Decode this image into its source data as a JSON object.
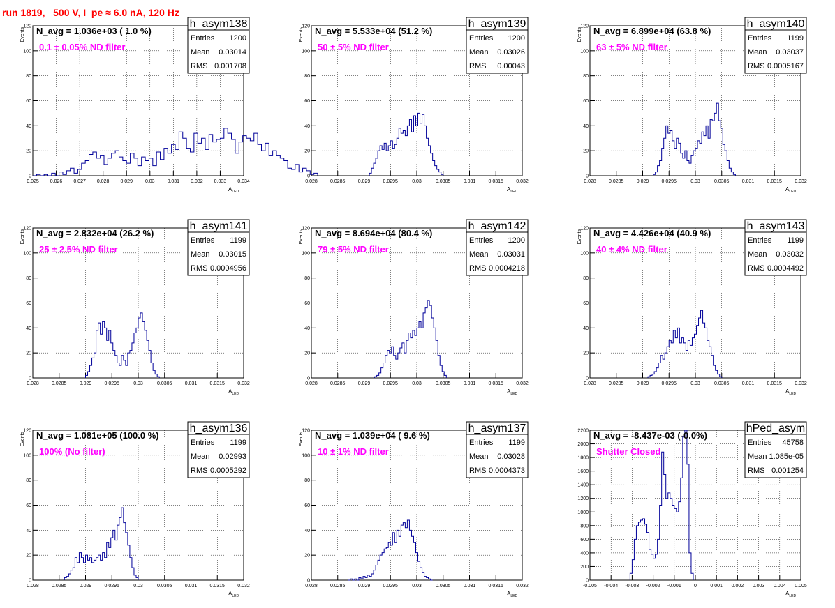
{
  "page_title": "run 1819,   500 V, I_pe ≈ 6.0 nA, 120 Hz",
  "colors": {
    "histogram_line": "#000099",
    "annotation_magenta": "#ff00ff",
    "title_red": "#ff0000",
    "grid": "#000000"
  },
  "stat_box_labels": {
    "entries": "Entries",
    "mean": "Mean",
    "rms": "RMS"
  },
  "chart_data": [
    {
      "type": "bar",
      "hist_name": "h_asym138",
      "header": "N_avg = 1.036e+03 ( 1.0 %)",
      "filter": "0.1 ± 0.05% ND filter",
      "stats": {
        "entries": "1200",
        "mean": "0.03014",
        "rms": "0.001708"
      },
      "xlabel": "A",
      "xlabel_sub": "LED",
      "ylabel": "Events",
      "xlim": [
        0.025,
        0.034
      ],
      "ylim": [
        0,
        120
      ],
      "grid": true,
      "xticks": [
        "0.025",
        "0.026",
        "0.027",
        "0.028",
        "0.029",
        "0.03",
        "0.031",
        "0.032",
        "0.033",
        "0.034"
      ],
      "yticks": [
        "0",
        "20",
        "40",
        "60",
        "80",
        "100",
        "120"
      ],
      "bin_start": 0.025,
      "bin_width": 0.00016,
      "values": [
        0,
        1,
        0,
        1,
        0,
        2,
        0,
        3,
        1,
        4,
        6,
        2,
        5,
        10,
        12,
        17,
        19,
        14,
        16,
        9,
        14,
        18,
        20,
        15,
        12,
        10,
        18,
        14,
        8,
        15,
        12,
        14,
        8,
        19,
        13,
        22,
        18,
        25,
        21,
        35,
        30,
        22,
        19,
        34,
        26,
        30,
        21,
        33,
        27,
        29,
        30,
        38,
        34,
        29,
        18,
        27,
        32,
        30,
        28,
        34,
        25,
        20,
        26,
        16,
        20,
        16,
        14,
        12,
        6,
        5,
        9,
        3,
        6,
        4,
        1,
        2,
        0
      ]
    },
    {
      "type": "bar",
      "hist_name": "h_asym139",
      "header": "N_avg = 5.533e+04 (51.2 %)",
      "filter": "50 ± 5% ND filter",
      "stats": {
        "entries": "1200",
        "mean": "0.03026",
        "rms": "0.00043"
      },
      "xlabel": "A",
      "xlabel_sub": "LED",
      "ylabel": "Events",
      "xlim": [
        0.028,
        0.032
      ],
      "ylim": [
        0,
        120
      ],
      "grid": true,
      "xticks": [
        "0.028",
        "0.0285",
        "0.029",
        "0.0295",
        "0.03",
        "0.0305",
        "0.031",
        "0.0315",
        "0.032"
      ],
      "yticks": [
        "0",
        "20",
        "40",
        "60",
        "80",
        "100",
        "120"
      ],
      "bin_start": 0.0291,
      "bin_width": 4e-05,
      "values": [
        2,
        6,
        10,
        14,
        20,
        24,
        21,
        26,
        20,
        24,
        28,
        22,
        25,
        30,
        38,
        34,
        36,
        32,
        40,
        45,
        35,
        48,
        40,
        50,
        42,
        49,
        40,
        30,
        24,
        18,
        12,
        8,
        5,
        3,
        1
      ]
    },
    {
      "type": "bar",
      "hist_name": "h_asym140",
      "header": "N_avg = 6.899e+04 (63.8 %)",
      "filter": "63 ± 5% ND filter",
      "stats": {
        "entries": "1199",
        "mean": "0.03037",
        "rms": "0.0005167"
      },
      "xlabel": "A",
      "xlabel_sub": "LED",
      "ylabel": "Events",
      "xlim": [
        0.028,
        0.032
      ],
      "ylim": [
        0,
        120
      ],
      "grid": true,
      "xticks": [
        "0.028",
        "0.0285",
        "0.029",
        "0.0295",
        "0.03",
        "0.0305",
        "0.031",
        "0.0315",
        "0.032"
      ],
      "yticks": [
        "0",
        "20",
        "40",
        "60",
        "80",
        "100",
        "120"
      ],
      "bin_start": 0.0292,
      "bin_width": 4e-05,
      "values": [
        1,
        3,
        8,
        12,
        22,
        30,
        40,
        34,
        36,
        28,
        22,
        30,
        26,
        18,
        14,
        20,
        12,
        10,
        16,
        20,
        22,
        28,
        26,
        35,
        32,
        40,
        30,
        45,
        44,
        50,
        58,
        44,
        38,
        25,
        20,
        12,
        6,
        3,
        1
      ]
    },
    {
      "type": "bar",
      "hist_name": "h_asym141",
      "header": "N_avg = 2.832e+04 (26.2 %)",
      "filter": "25 ± 2.5% ND filter",
      "stats": {
        "entries": "1199",
        "mean": "0.03015",
        "rms": "0.0004956"
      },
      "xlabel": "A",
      "xlabel_sub": "LED",
      "ylabel": "Events",
      "xlim": [
        0.028,
        0.032
      ],
      "ylim": [
        0,
        120
      ],
      "grid": true,
      "xticks": [
        "0.028",
        "0.0285",
        "0.029",
        "0.0295",
        "0.03",
        "0.0305",
        "0.031",
        "0.0315",
        "0.032"
      ],
      "yticks": [
        "0",
        "20",
        "40",
        "60",
        "80",
        "100",
        "120"
      ],
      "bin_start": 0.029,
      "bin_width": 4e-05,
      "values": [
        2,
        5,
        10,
        16,
        20,
        38,
        44,
        35,
        45,
        40,
        30,
        38,
        28,
        22,
        18,
        12,
        10,
        18,
        14,
        10,
        20,
        22,
        28,
        36,
        40,
        48,
        52,
        45,
        38,
        30,
        22,
        12,
        6,
        3,
        1
      ]
    },
    {
      "type": "bar",
      "hist_name": "h_asym142",
      "header": "N_avg = 8.694e+04 (80.4 %)",
      "filter": "79 ± 5% ND filter",
      "stats": {
        "entries": "1200",
        "mean": "0.03031",
        "rms": "0.0004218"
      },
      "xlabel": "A",
      "xlabel_sub": "LED",
      "ylabel": "Events",
      "xlim": [
        0.028,
        0.032
      ],
      "ylim": [
        0,
        120
      ],
      "grid": true,
      "xticks": [
        "0.028",
        "0.0285",
        "0.029",
        "0.0295",
        "0.03",
        "0.0305",
        "0.031",
        "0.0315",
        "0.032"
      ],
      "yticks": [
        "0",
        "20",
        "40",
        "60",
        "80",
        "100",
        "120"
      ],
      "bin_start": 0.0292,
      "bin_width": 4e-05,
      "values": [
        1,
        2,
        4,
        8,
        12,
        18,
        22,
        20,
        25,
        18,
        15,
        20,
        24,
        28,
        20,
        30,
        36,
        32,
        38,
        34,
        40,
        45,
        40,
        52,
        56,
        62,
        58,
        48,
        40,
        30,
        18,
        10,
        5,
        2
      ]
    },
    {
      "type": "bar",
      "hist_name": "h_asym143",
      "header": "N_avg = 4.426e+04 (40.9 %)",
      "filter": "40 ± 4% ND filter",
      "stats": {
        "entries": "1199",
        "mean": "0.03032",
        "rms": "0.0004492"
      },
      "xlabel": "A",
      "xlabel_sub": "LED",
      "ylabel": "Events",
      "xlim": [
        0.028,
        0.032
      ],
      "ylim": [
        0,
        120
      ],
      "grid": true,
      "xticks": [
        "0.028",
        "0.0285",
        "0.029",
        "0.0295",
        "0.03",
        "0.0305",
        "0.031",
        "0.0315",
        "0.032"
      ],
      "yticks": [
        "0",
        "20",
        "40",
        "60",
        "80",
        "100",
        "120"
      ],
      "bin_start": 0.0291,
      "bin_width": 4e-05,
      "values": [
        1,
        2,
        3,
        5,
        8,
        12,
        18,
        15,
        20,
        25,
        30,
        28,
        38,
        32,
        40,
        28,
        32,
        28,
        22,
        30,
        26,
        32,
        35,
        42,
        48,
        54,
        44,
        40,
        30,
        25,
        18,
        10,
        6,
        3,
        1
      ]
    },
    {
      "type": "bar",
      "hist_name": "h_asym136",
      "header": "N_avg = 1.081e+05 (100.0 %)",
      "filter": "100% (No filter)",
      "stats": {
        "entries": "1199",
        "mean": "0.02993",
        "rms": "0.0005292"
      },
      "xlabel": "A",
      "xlabel_sub": "LED",
      "ylabel": "Events",
      "xlim": [
        0.028,
        0.032
      ],
      "ylim": [
        0,
        120
      ],
      "grid": true,
      "xticks": [
        "0.028",
        "0.0285",
        "0.029",
        "0.0295",
        "0.03",
        "0.0305",
        "0.031",
        "0.0315",
        "0.032"
      ],
      "yticks": [
        "0",
        "20",
        "40",
        "60",
        "80",
        "100",
        "120"
      ],
      "bin_start": 0.0286,
      "bin_width": 4e-05,
      "values": [
        2,
        3,
        5,
        8,
        10,
        18,
        14,
        22,
        18,
        14,
        20,
        16,
        18,
        14,
        16,
        18,
        20,
        16,
        22,
        18,
        30,
        26,
        34,
        40,
        32,
        44,
        50,
        58,
        46,
        38,
        28,
        18,
        10,
        4,
        2
      ]
    },
    {
      "type": "bar",
      "hist_name": "h_asym137",
      "header": "N_avg = 1.039e+04 ( 9.6 %)",
      "filter": "10 ± 1% ND filter",
      "stats": {
        "entries": "1199",
        "mean": "0.03028",
        "rms": "0.0004373"
      },
      "xlabel": "A",
      "xlabel_sub": "LED",
      "ylabel": "Events",
      "xlim": [
        0.028,
        0.032
      ],
      "ylim": [
        0,
        120
      ],
      "grid": true,
      "xticks": [
        "0.028",
        "0.0285",
        "0.029",
        "0.0295",
        "0.03",
        "0.0305",
        "0.031",
        "0.0315",
        "0.032"
      ],
      "yticks": [
        "0",
        "20",
        "40",
        "60",
        "80",
        "100",
        "120"
      ],
      "bin_start": 0.0287,
      "bin_width": 4e-05,
      "values": [
        0,
        1,
        0,
        1,
        0,
        2,
        1,
        3,
        2,
        4,
        3,
        5,
        8,
        12,
        16,
        20,
        22,
        25,
        26,
        30,
        28,
        38,
        30,
        40,
        35,
        44,
        46,
        42,
        48,
        40,
        35,
        30,
        22,
        15,
        10,
        6,
        3,
        2,
        1,
        0
      ]
    },
    {
      "type": "bar",
      "hist_name": "hPed_asym",
      "header": "N_avg = -8.437e-03 (-0.0%)",
      "filter": "Shutter Closed",
      "stats": {
        "entries": "45758",
        "mean": "1.085e-05",
        "rms": "0.001254"
      },
      "xlabel": "A",
      "xlabel_sub": "LED",
      "ylabel": "",
      "xlim": [
        -0.005,
        0.005
      ],
      "ylim": [
        0,
        2200
      ],
      "grid": true,
      "xticks": [
        "-0.005",
        "-0.004",
        "-0.003",
        "-0.002",
        "-0.001",
        "0",
        "0.001",
        "0.002",
        "0.003",
        "0.004",
        "0.005"
      ],
      "yticks": [
        "0",
        "200",
        "400",
        "600",
        "800",
        "1000",
        "1200",
        "1400",
        "1600",
        "1800",
        "2000",
        "2200"
      ],
      "bin_start": -0.0031,
      "bin_width": 0.0001,
      "values": [
        100,
        300,
        600,
        800,
        850,
        880,
        900,
        820,
        700,
        450,
        380,
        320,
        380,
        600,
        1100,
        1880,
        1550,
        1200,
        1280,
        1200,
        1100,
        1050,
        1000,
        1150,
        1500,
        2100,
        2200,
        1700,
        400,
        100
      ]
    }
  ]
}
